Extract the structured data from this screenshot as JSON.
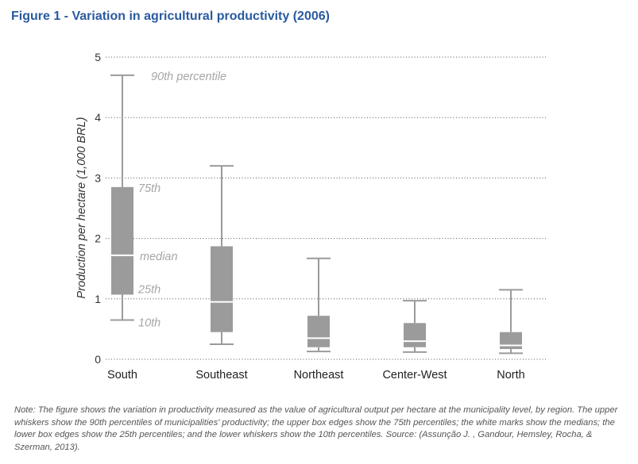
{
  "figure": {
    "title": "Figure 1 - Variation in agricultural productivity (2006)",
    "note": "Note: The figure shows the variation in productivity measured as the value of agricultural output per hectare at the municipality level, by region. The upper whiskers show the 90th percentiles of municipalities' productivity; the upper box edges show the 75th percentiles; the white marks show the medians; the lower box edges show the 25th percentiles; and the lower whiskers show the 10th percentiles. Source: (Assunção J. , Gandour, Hemsley, Rocha, & Szerman, 2013)."
  },
  "chart_data": {
    "type": "box",
    "ylabel": "Production per hectare (1,000 BRL)",
    "xlabel": "",
    "ylim": [
      0,
      5
    ],
    "yticks": [
      0,
      1,
      2,
      3,
      4,
      5
    ],
    "grid": "horizontal-dotted",
    "categories": [
      "South",
      "Southeast",
      "Northeast",
      "Center-West",
      "North"
    ],
    "p10": [
      0.65,
      0.25,
      0.13,
      0.12,
      0.1
    ],
    "p25": [
      1.07,
      0.45,
      0.2,
      0.2,
      0.17
    ],
    "median": [
      1.72,
      0.95,
      0.35,
      0.3,
      0.23
    ],
    "p75": [
      2.85,
      1.87,
      0.72,
      0.6,
      0.45
    ],
    "p90": [
      4.7,
      3.2,
      1.67,
      0.97,
      1.15
    ],
    "annotations": [
      {
        "text": "90th percentile",
        "category": "South",
        "y": 4.7
      },
      {
        "text": "75th",
        "category": "South",
        "y": 2.85
      },
      {
        "text": "median",
        "category": "South",
        "y": 1.72
      },
      {
        "text": "25th",
        "category": "South",
        "y": 1.07
      },
      {
        "text": "10th",
        "category": "South",
        "y": 0.65
      }
    ],
    "colors": {
      "box": "#9b9b9b",
      "median": "#ffffff",
      "grid": "#555555",
      "annotation": "#a6a6a6"
    }
  }
}
